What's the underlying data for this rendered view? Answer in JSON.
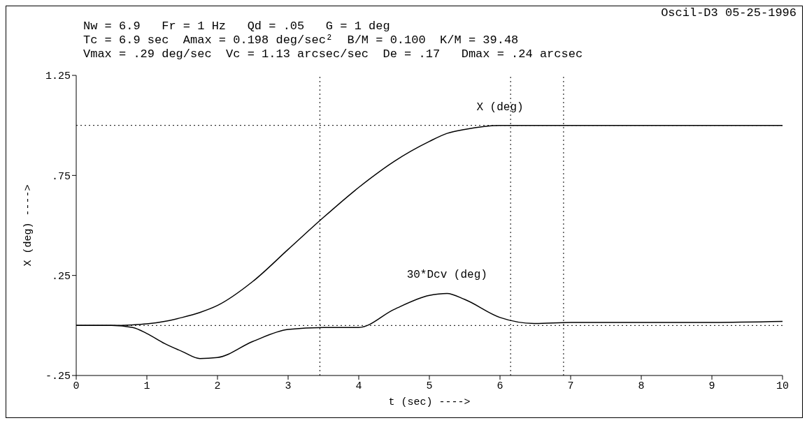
{
  "chart_data": {
    "type": "line",
    "title": "Oscil-D3  05-25-1996",
    "annotations": [
      "Nw = 6.9   Fr = 1 Hz   Qd = .05   G = 1 deg",
      "Tc = 6.9 sec  Amax = 0.198 deg/sec²  B/M = 0.100  K/M = 39.48",
      "Vmax = .29 deg/sec  Vc = 1.13 arcsec/sec  De = .17   Dmax = .24 arcsec"
    ],
    "xlabel": "t (sec) ---->",
    "ylabel": "X (deg) ---->",
    "x": [
      0,
      0.5,
      0.8,
      1,
      1.25,
      1.5,
      1.75,
      2,
      2.5,
      3,
      3.5,
      4,
      4.5,
      5,
      5.25,
      5.5,
      6,
      6.5,
      7,
      8,
      9,
      10
    ],
    "series": [
      {
        "name": "X (deg)",
        "color": "#000000",
        "values": [
          0,
          0,
          0.003,
          0.008,
          0.02,
          0.04,
          0.065,
          0.1,
          0.22,
          0.38,
          0.54,
          0.69,
          0.82,
          0.92,
          0.96,
          0.98,
          1.0,
          1.0,
          1.0,
          1.0,
          1.0,
          1.0
        ]
      },
      {
        "name": "30*Dcv (deg)",
        "color": "#000000",
        "values": [
          0,
          0,
          -0.01,
          -0.04,
          -0.09,
          -0.13,
          -0.165,
          -0.16,
          -0.08,
          -0.02,
          -0.01,
          -0.01,
          0.08,
          0.15,
          0.16,
          0.13,
          0.04,
          0.01,
          0.015,
          0.015,
          0.015,
          0.02
        ]
      }
    ],
    "xlim": [
      0,
      10
    ],
    "xticks": [
      0,
      1,
      2,
      3,
      4,
      5,
      6,
      7,
      8,
      9,
      10
    ],
    "ylim": [
      -0.25,
      1.25
    ],
    "yticks": [
      {
        "value": -0.25,
        "label": "-.25"
      },
      {
        "value": 0.25,
        "label": ".25"
      },
      {
        "value": 0.75,
        "label": ".75"
      },
      {
        "value": 1.25,
        "label": "1.25"
      }
    ],
    "ref_lines": [
      {
        "axis": "y",
        "value": 1,
        "line_style": "dotted"
      },
      {
        "axis": "y",
        "value": 0,
        "line_style": "dotted"
      },
      {
        "axis": "x",
        "value": 3.45,
        "line_style": "dotted"
      },
      {
        "axis": "x",
        "value": 6.15,
        "line_style": "dotted"
      },
      {
        "axis": "x",
        "value": 6.9,
        "line_style": "dotted"
      }
    ],
    "grid": false,
    "legend": false,
    "marker": "none",
    "line_style": "solid"
  }
}
